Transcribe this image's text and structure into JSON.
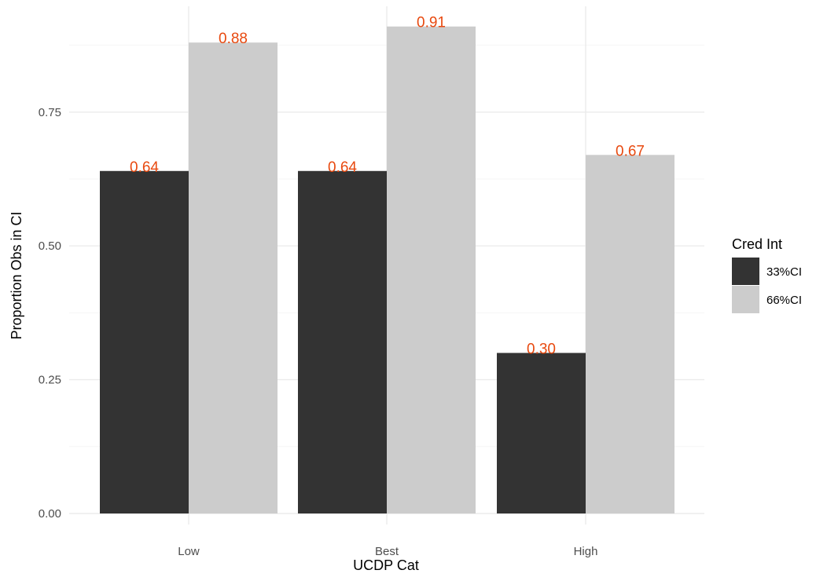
{
  "chart_data": {
    "type": "bar",
    "xlabel": "UCDP Cat",
    "ylabel": "Proportion Obs in CI",
    "categories": [
      "Low",
      "Best",
      "High"
    ],
    "ylim": [
      0,
      0.91
    ],
    "yticks": [
      0.0,
      0.25,
      0.5,
      0.75
    ],
    "ytick_labels": [
      "0.00",
      "0.25",
      "0.50",
      "0.75"
    ],
    "grid": true,
    "legend": {
      "title": "Cred Int",
      "position": "right"
    },
    "series": [
      {
        "name": "33%CI",
        "color": "#333333",
        "values": [
          0.64,
          0.64,
          0.3
        ],
        "labels": [
          "0.64",
          "0.64",
          "0.30"
        ]
      },
      {
        "name": "66%CI",
        "color": "#cccccc",
        "values": [
          0.88,
          0.91,
          0.67
        ],
        "labels": [
          "0.88",
          "0.91",
          "0.67"
        ]
      }
    ],
    "data_label_color": "#e8490f"
  }
}
